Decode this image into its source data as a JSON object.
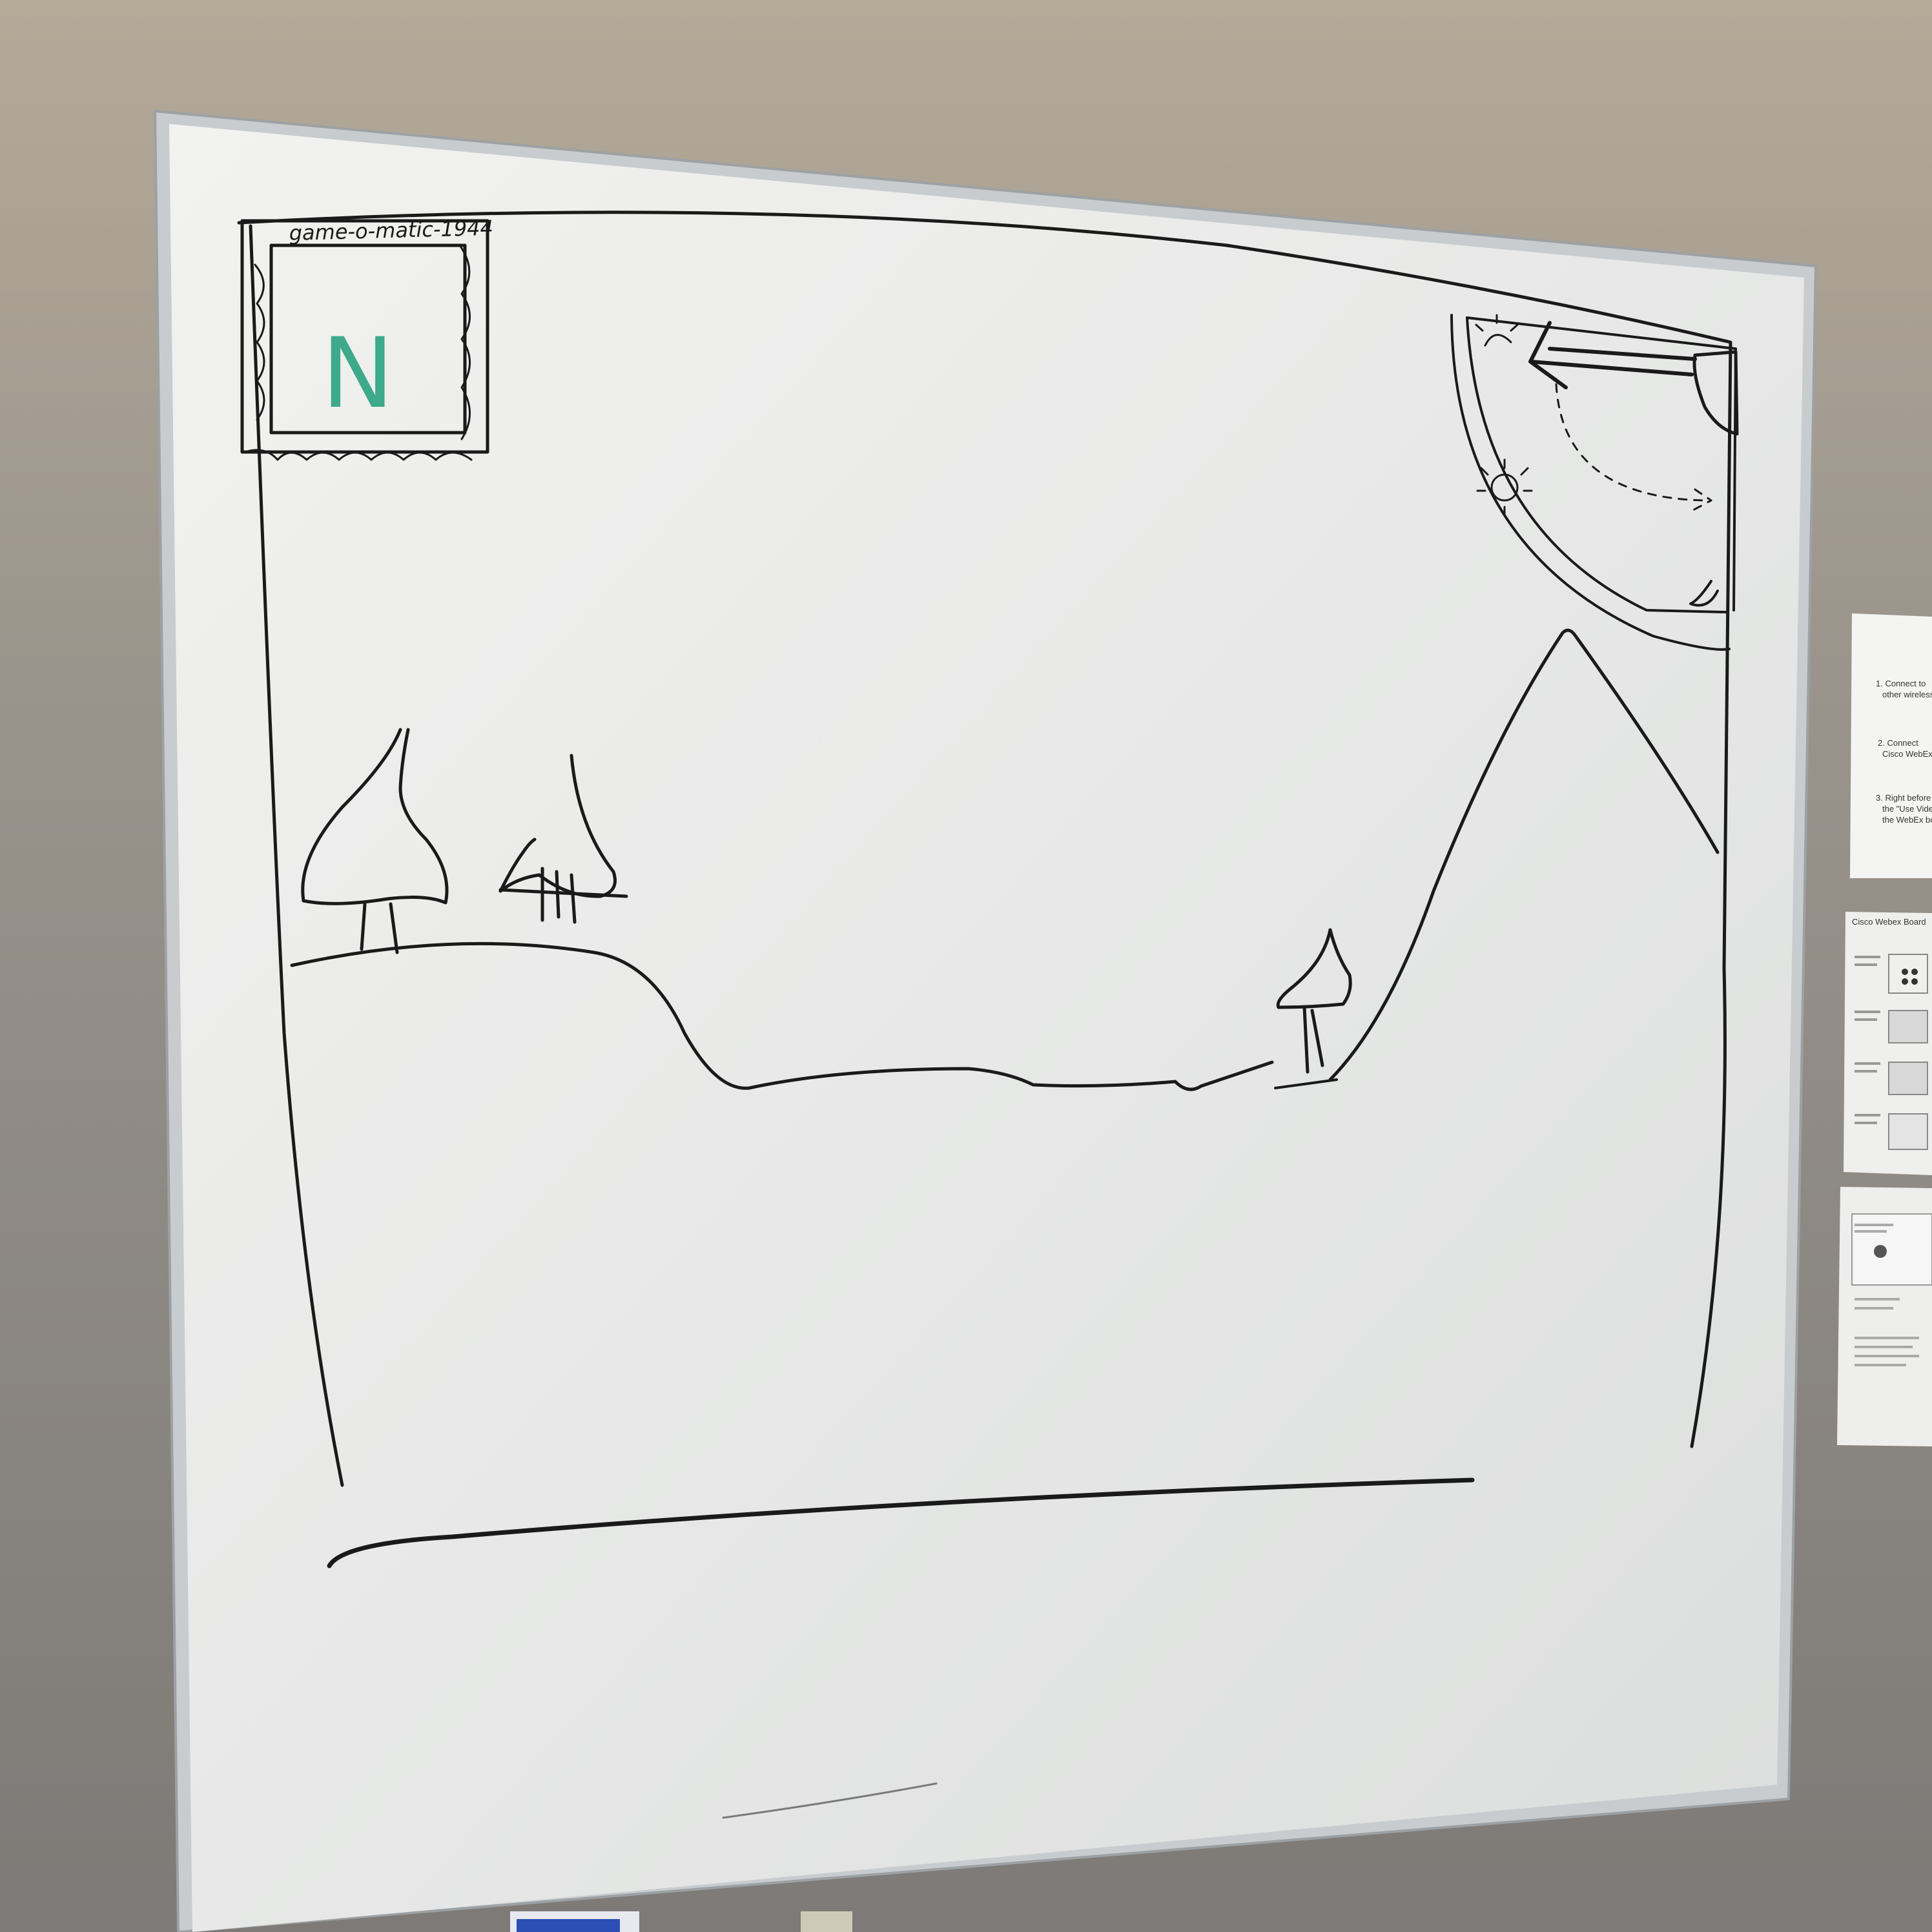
{
  "photo": {
    "subject": "whiteboard",
    "wall_color": "#8f8a84",
    "board_color": "#eeeeec",
    "frame_color": "#c9ccce"
  },
  "sketch": {
    "game_title": "game-o-matic-1944",
    "score_text": "N",
    "score_color": "#1f9e7a",
    "ink_color": "#1a1a1a"
  },
  "wall_papers": [
    {
      "heading": "",
      "steps": [
        "1.  Connect to",
        "other wireless",
        "2.  Connect",
        "Cisco WebEx",
        "3.  Right before",
        "the \"Use Video",
        "the WebEx boa"
      ]
    },
    {
      "heading": "Cisco Webex Board"
    }
  ]
}
